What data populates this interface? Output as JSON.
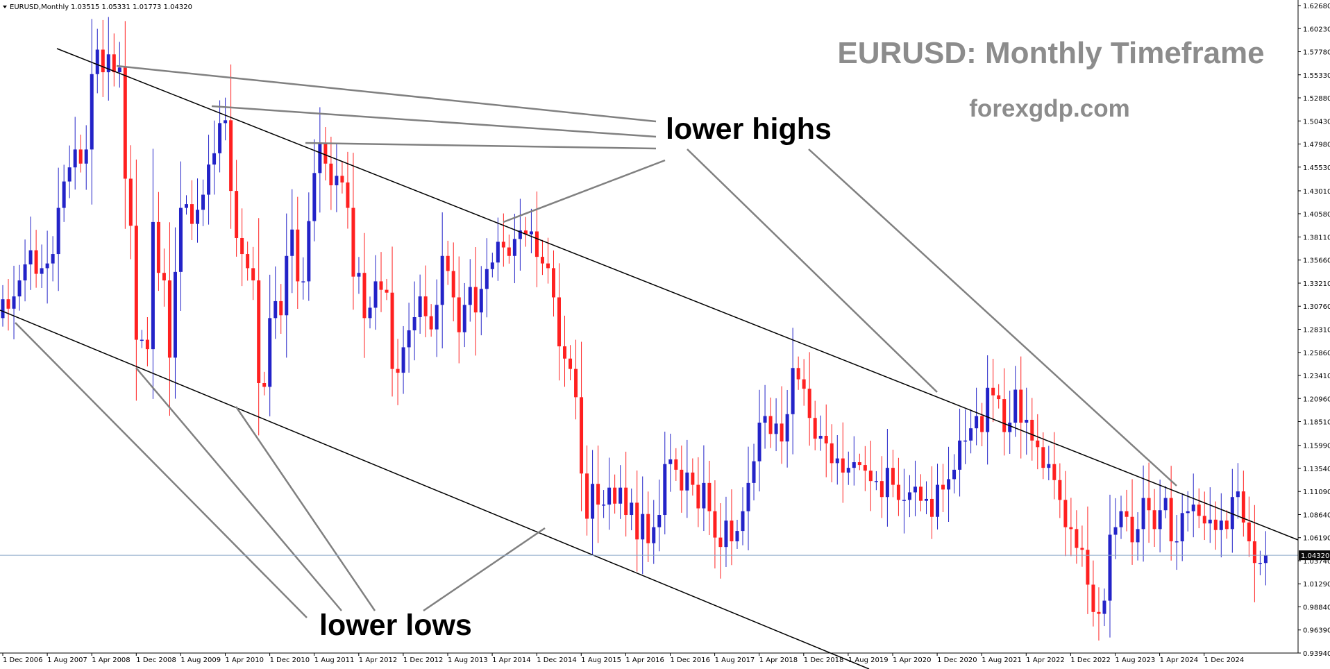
{
  "header": {
    "symbol": "EURUSD,Monthly",
    "ohlc": "1.03515 1.05331 1.01773 1.04320"
  },
  "overlay": {
    "title": "EURUSD: Monthly Timeframe",
    "website": "forexgdp.com",
    "label_highs": "lower highs",
    "label_lows": "lower lows"
  },
  "colors": {
    "bull": "#2323c8",
    "bear": "#ff2020",
    "price_line": "#8aa6c8",
    "price_box": "#0a0a0a",
    "channel": "#000000",
    "pointer": "#808080"
  },
  "chart_data": {
    "type": "candlestick",
    "ylim": [
      0.9394,
      1.6268
    ],
    "y_ticks": [
      "1.62680",
      "1.60230",
      "1.57780",
      "1.55330",
      "1.52880",
      "1.50430",
      "1.47980",
      "1.45530",
      "1.43010",
      "1.40580",
      "1.38110",
      "1.35660",
      "1.33210",
      "1.30760",
      "1.28310",
      "1.25860",
      "1.23410",
      "1.20960",
      "1.18510",
      "1.15990",
      "1.13540",
      "1.11090",
      "1.08640",
      "1.06190",
      "1.03740",
      "1.01290",
      "0.98840",
      "0.96390",
      "0.93940"
    ],
    "x_ticks": [
      "1 Dec 2006",
      "1 Aug 2007",
      "1 Apr 2008",
      "1 Dec 2008",
      "1 Aug 2009",
      "1 Apr 2010",
      "1 Dec 2010",
      "1 Aug 2011",
      "1 Apr 2012",
      "1 Dec 2012",
      "1 Aug 2013",
      "1 Apr 2014",
      "1 Dec 2014",
      "1 Aug 2015",
      "1 Apr 2016",
      "1 Dec 2016",
      "1 Aug 2017",
      "1 Apr 2018",
      "1 Dec 2018",
      "1 Aug 2019",
      "1 Apr 2020",
      "1 Dec 2020",
      "1 Aug 2021",
      "1 Apr 2022",
      "1 Dec 2022",
      "1 Aug 2023",
      "1 Apr 2024",
      "1 Dec 2024"
    ],
    "current_price": "1.04320",
    "close_series": [
      1.315,
      1.305,
      1.318,
      1.335,
      1.352,
      1.367,
      1.342,
      1.348,
      1.353,
      1.363,
      1.412,
      1.44,
      1.455,
      1.474,
      1.459,
      1.474,
      1.554,
      1.58,
      1.556,
      1.575,
      1.556,
      1.561,
      1.443,
      1.393,
      1.272,
      1.272,
      1.262,
      1.397,
      1.343,
      1.335,
      1.253,
      1.344,
      1.412,
      1.416,
      1.395,
      1.41,
      1.426,
      1.458,
      1.47,
      1.502,
      1.505,
      1.43,
      1.38,
      1.363,
      1.348,
      1.335,
      1.226,
      1.222,
      1.295,
      1.313,
      1.298,
      1.361,
      1.389,
      1.334,
      1.334,
      1.398,
      1.449,
      1.48,
      1.459,
      1.436,
      1.446,
      1.439,
      1.412,
      1.339,
      1.343,
      1.295,
      1.306,
      1.334,
      1.325,
      1.322,
      1.241,
      1.237,
      1.264,
      1.282,
      1.296,
      1.318,
      1.297,
      1.283,
      1.309,
      1.361,
      1.345,
      1.317,
      1.28,
      1.309,
      1.328,
      1.301,
      1.326,
      1.347,
      1.354,
      1.376,
      1.37,
      1.361,
      1.379,
      1.388,
      1.384,
      1.387,
      1.36,
      1.353,
      1.348,
      1.317,
      1.265,
      1.252,
      1.241,
      1.211,
      1.13,
      1.082,
      1.119,
      1.097,
      1.097,
      1.115,
      1.098,
      1.115,
      1.086,
      1.099,
      1.06,
      1.087,
      1.056,
      1.073,
      1.086,
      1.14,
      1.145,
      1.134,
      1.112,
      1.131,
      1.118,
      1.093,
      1.12,
      1.09,
      1.062,
      1.052,
      1.08,
      1.058,
      1.069,
      1.09,
      1.12,
      1.143,
      1.184,
      1.191,
      1.172,
      1.183,
      1.164,
      1.193,
      1.242,
      1.23,
      1.22,
      1.189,
      1.167,
      1.17,
      1.162,
      1.141,
      1.146,
      1.131,
      1.136,
      1.142,
      1.139,
      1.133,
      1.122,
      1.122,
      1.105,
      1.136,
      1.118,
      1.102,
      1.102,
      1.11,
      1.116,
      1.101,
      1.103,
      1.084,
      1.118,
      1.113,
      1.124,
      1.134,
      1.165,
      1.165,
      1.178,
      1.191,
      1.174,
      1.221,
      1.213,
      1.209,
      1.174,
      1.184,
      1.219,
      1.184,
      1.187,
      1.165,
      1.158,
      1.136,
      1.14,
      1.123,
      1.102,
      1.073,
      1.071,
      1.051,
      1.049,
      1.012,
      0.983,
      0.981,
      0.995,
      1.065,
      1.073,
      1.09,
      1.084,
      1.057,
      1.071,
      1.104,
      1.091,
      1.071,
      1.091,
      1.104,
      1.058,
      1.058,
      1.088,
      1.09,
      1.097,
      1.085,
      1.077,
      1.081,
      1.07,
      1.08,
      1.071,
      1.105,
      1.111,
      1.078,
      1.058,
      1.035,
      1.035,
      1.043
    ]
  },
  "annotation": {
    "price_label": "1.04320"
  }
}
